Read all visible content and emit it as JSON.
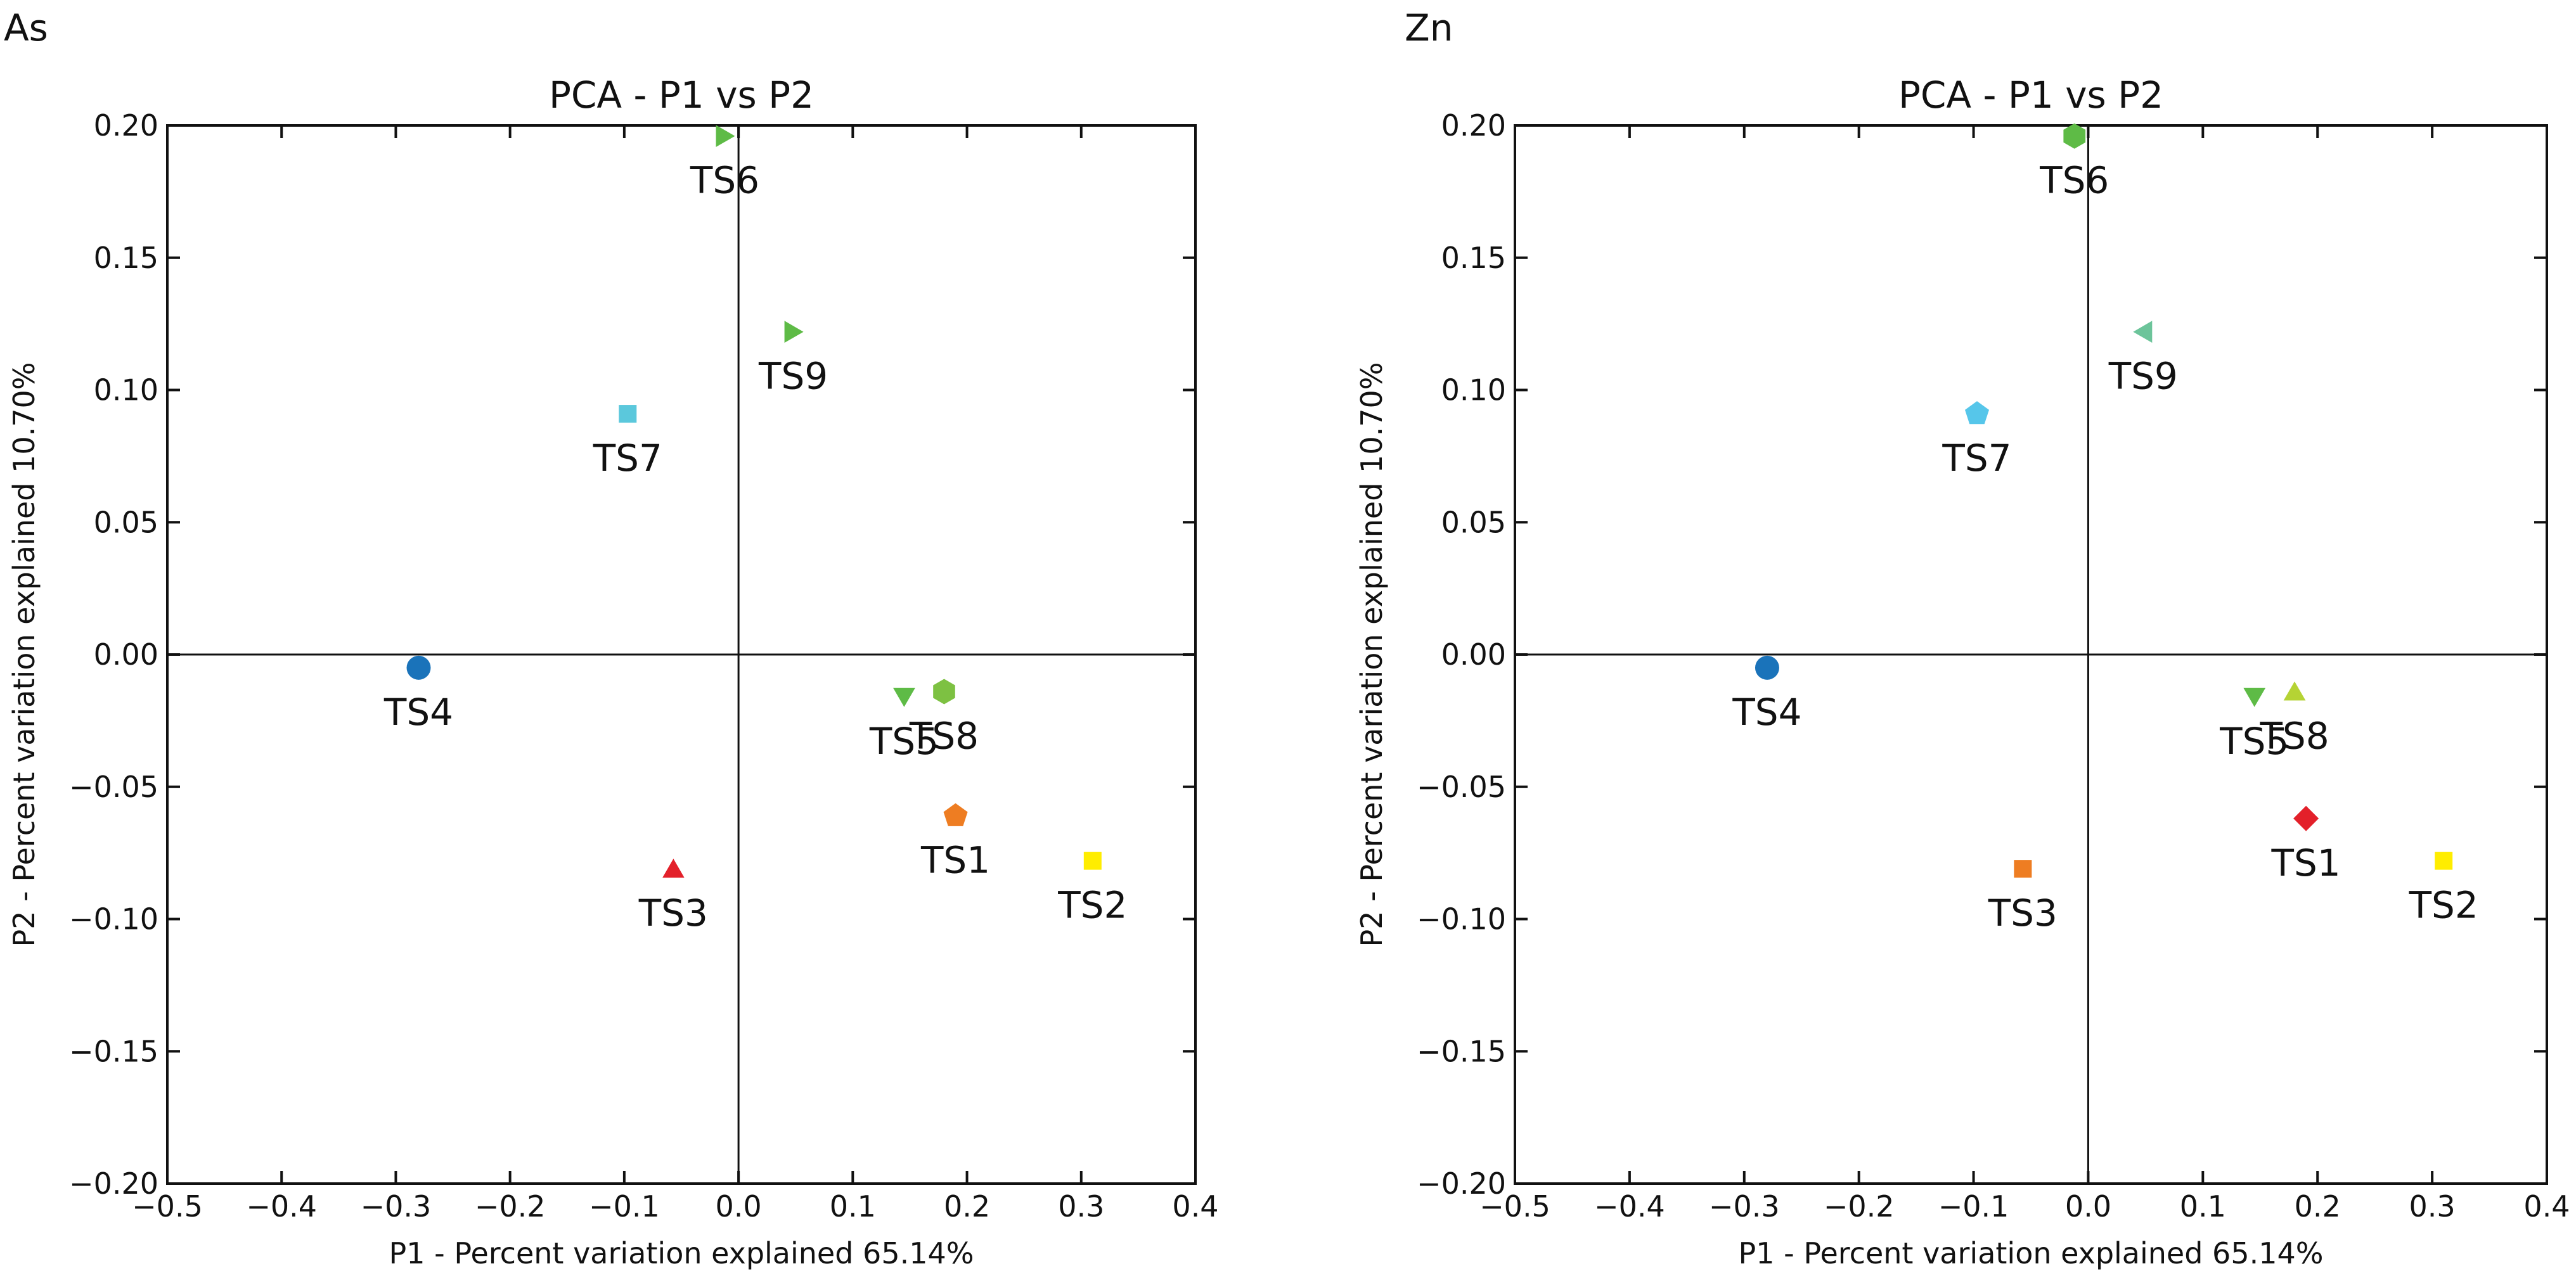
{
  "chart_data": [
    {
      "type": "scatter",
      "panel_label": "As",
      "title": "PCA - P1 vs P2",
      "xlabel": "P1 - Percent variation explained 65.14%",
      "ylabel": "P2 - Percent variation explained 10.70%",
      "xlim": [
        -0.5,
        0.4
      ],
      "ylim": [
        -0.2,
        0.2
      ],
      "xticks": [
        -0.5,
        -0.4,
        -0.3,
        -0.2,
        -0.1,
        0.0,
        0.1,
        0.2,
        0.3,
        0.4
      ],
      "yticks": [
        -0.2,
        -0.15,
        -0.1,
        -0.05,
        0.0,
        0.05,
        0.1,
        0.15,
        0.2
      ],
      "xtick_labels": [
        "−0.5",
        "−0.4",
        "−0.3",
        "−0.2",
        "−0.1",
        "0.0",
        "0.1",
        "0.2",
        "0.3",
        "0.4"
      ],
      "ytick_labels": [
        "−0.20",
        "−0.15",
        "−0.10",
        "−0.05",
        "0.00",
        "0.05",
        "0.10",
        "0.15",
        "0.20"
      ],
      "points": [
        {
          "label": "TS1",
          "x": 0.19,
          "y": -0.061,
          "marker": "pentagon",
          "color": "#EE7D22"
        },
        {
          "label": "TS2",
          "x": 0.31,
          "y": -0.078,
          "marker": "square",
          "color": "#FFED00"
        },
        {
          "label": "TS3",
          "x": -0.057,
          "y": -0.081,
          "marker": "triangle-up",
          "color": "#E3202A"
        },
        {
          "label": "TS4",
          "x": -0.28,
          "y": -0.005,
          "marker": "circle",
          "color": "#1A73BA"
        },
        {
          "label": "TS5",
          "x": 0.145,
          "y": -0.016,
          "marker": "triangle-down",
          "color": "#5EBB46"
        },
        {
          "label": "TS6",
          "x": -0.012,
          "y": 0.196,
          "marker": "triangle-right",
          "color": "#5EBB46"
        },
        {
          "label": "TS7",
          "x": -0.097,
          "y": 0.091,
          "marker": "square",
          "color": "#5BC8DC"
        },
        {
          "label": "TS8",
          "x": 0.18,
          "y": -0.014,
          "marker": "hexagon",
          "color": "#7DC142"
        },
        {
          "label": "TS9",
          "x": 0.048,
          "y": 0.122,
          "marker": "triangle-right",
          "color": "#5EBB46"
        }
      ]
    },
    {
      "type": "scatter",
      "panel_label": "Zn",
      "title": "PCA - P1 vs P2",
      "xlabel": "P1 - Percent variation explained 65.14%",
      "ylabel": "P2 - Percent variation explained 10.70%",
      "xlim": [
        -0.5,
        0.4
      ],
      "ylim": [
        -0.2,
        0.2
      ],
      "xticks": [
        -0.5,
        -0.4,
        -0.3,
        -0.2,
        -0.1,
        0.0,
        0.1,
        0.2,
        0.3,
        0.4
      ],
      "yticks": [
        -0.2,
        -0.15,
        -0.1,
        -0.05,
        0.0,
        0.05,
        0.1,
        0.15,
        0.2
      ],
      "xtick_labels": [
        "−0.5",
        "−0.4",
        "−0.3",
        "−0.2",
        "−0.1",
        "0.0",
        "0.1",
        "0.2",
        "0.3",
        "0.4"
      ],
      "ytick_labels": [
        "−0.20",
        "−0.15",
        "−0.10",
        "−0.05",
        "0.00",
        "0.05",
        "0.10",
        "0.15",
        "0.20"
      ],
      "points": [
        {
          "label": "TS1",
          "x": 0.19,
          "y": -0.062,
          "marker": "diamond",
          "color": "#E3202A"
        },
        {
          "label": "TS2",
          "x": 0.31,
          "y": -0.078,
          "marker": "square",
          "color": "#FFED00"
        },
        {
          "label": "TS3",
          "x": -0.057,
          "y": -0.081,
          "marker": "square",
          "color": "#EE7D22"
        },
        {
          "label": "TS4",
          "x": -0.28,
          "y": -0.005,
          "marker": "circle",
          "color": "#1A73BA"
        },
        {
          "label": "TS5",
          "x": 0.145,
          "y": -0.016,
          "marker": "triangle-down",
          "color": "#5EBB46"
        },
        {
          "label": "TS6",
          "x": -0.012,
          "y": 0.196,
          "marker": "hexagon",
          "color": "#5EBB46"
        },
        {
          "label": "TS7",
          "x": -0.097,
          "y": 0.091,
          "marker": "pentagon",
          "color": "#56C6EA"
        },
        {
          "label": "TS8",
          "x": 0.18,
          "y": -0.014,
          "marker": "triangle-up",
          "color": "#B5D334"
        },
        {
          "label": "TS9",
          "x": 0.048,
          "y": 0.122,
          "marker": "triangle-left",
          "color": "#6CC49A"
        }
      ]
    }
  ]
}
